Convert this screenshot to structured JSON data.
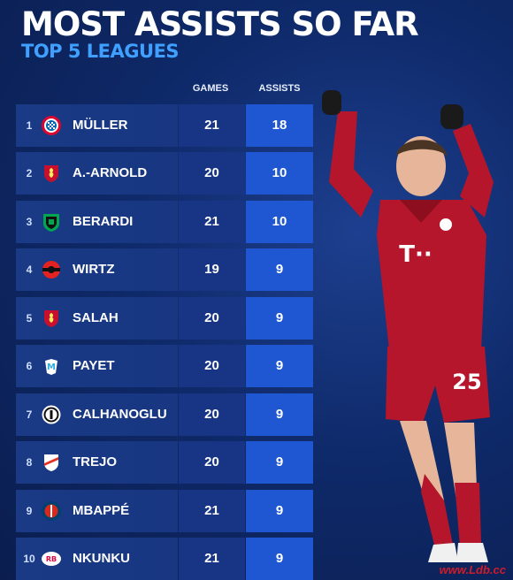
{
  "header": {
    "title": "MOST ASSISTS SO FAR",
    "subtitle": "TOP 5 LEAGUES"
  },
  "columns": {
    "games": "GAMES",
    "assists": "ASSISTS"
  },
  "rows": [
    {
      "rank": "1",
      "name": "MÜLLER",
      "games": "21",
      "assists": "18",
      "club_badge": "bayern-munich-badge",
      "badge_color": "#dc052d"
    },
    {
      "rank": "2",
      "name": "A.-ARNOLD",
      "games": "20",
      "assists": "10",
      "club_badge": "liverpool-badge",
      "badge_color": "#c8102e"
    },
    {
      "rank": "3",
      "name": "BERARDI",
      "games": "21",
      "assists": "10",
      "club_badge": "sassuolo-badge",
      "badge_color": "#00a650"
    },
    {
      "rank": "4",
      "name": "WIRTZ",
      "games": "19",
      "assists": "9",
      "club_badge": "leverkusen-badge",
      "badge_color": "#e32221"
    },
    {
      "rank": "5",
      "name": "SALAH",
      "games": "20",
      "assists": "9",
      "club_badge": "liverpool-badge",
      "badge_color": "#c8102e"
    },
    {
      "rank": "6",
      "name": "PAYET",
      "games": "20",
      "assists": "9",
      "club_badge": "marseille-badge",
      "badge_color": "#2faee0"
    },
    {
      "rank": "7",
      "name": "CALHANOGLU",
      "games": "20",
      "assists": "9",
      "club_badge": "inter-badge",
      "badge_color": "#0068a8"
    },
    {
      "rank": "8",
      "name": "TREJO",
      "games": "20",
      "assists": "9",
      "club_badge": "rayo-vallecano-badge",
      "badge_color": "#e53027"
    },
    {
      "rank": "9",
      "name": "MBAPPÉ",
      "games": "21",
      "assists": "9",
      "club_badge": "psg-badge",
      "badge_color": "#004170"
    },
    {
      "rank": "10",
      "name": "NKUNKU",
      "games": "21",
      "assists": "9",
      "club_badge": "leipzig-badge",
      "badge_color": "#dd0741"
    }
  ],
  "player_image": {
    "shirt_number": "25",
    "sponsor": "T··"
  },
  "watermark": "www.Ldb.cc",
  "colors": {
    "title": "#ffffff",
    "subtitle": "#3fa0ff",
    "assists_column": "#1f57d2",
    "kit_red": "#b5162b"
  }
}
